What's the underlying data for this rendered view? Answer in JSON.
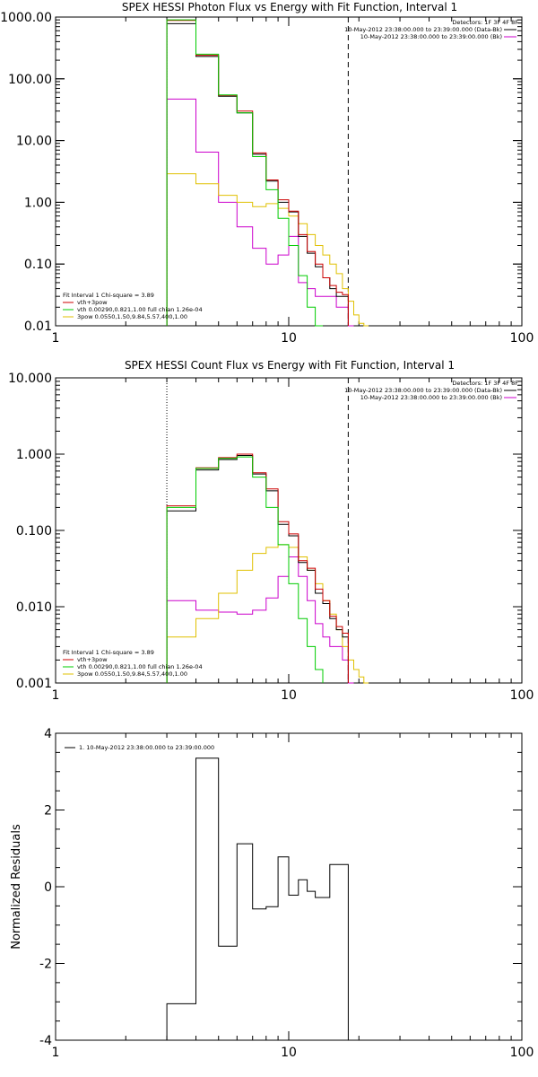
{
  "chart_data": [
    {
      "type": "line",
      "title": "SPEX HESSI Photon Flux vs Energy with Fit Function, Interval 1",
      "xscale": "log",
      "yscale": "log",
      "xlim": [
        1,
        100
      ],
      "ylim": [
        0.01,
        1000
      ],
      "xticks": [
        "1",
        "10",
        "100"
      ],
      "yticks": [
        "0.01",
        "0.10",
        "1.00",
        "10.00",
        "100.00",
        "1000.00"
      ],
      "ytick_values": [
        0.01,
        0.1,
        1,
        10,
        100,
        1000
      ],
      "detectors_text": "Detectors: 1F 3F 4F 8F",
      "top_legend": [
        {
          "label": "10-May-2012 23:38:00.000 to 23:39:00.000 (Data-Bk)",
          "color": "#000000"
        },
        {
          "label": "10-May-2012 23:38:00.000 to 23:39:00.000 (Bk)",
          "color": "#cc00cc"
        }
      ],
      "fit_legend_header": "Fit Interval 1   Chi-square = 3.89",
      "fit_legend": [
        {
          "label": "vth+3pow",
          "color": "#cc0000"
        },
        {
          "label": "vth 0.00290,0.821,1.00  full chian 1.26e-04",
          "color": "#00cc00"
        },
        {
          "label": "3pow 0.0550,1.50,9.84,5.57,400,1.00",
          "color": "#e0c000"
        }
      ],
      "dotted_x": 3.0,
      "dashed_x": 18.0,
      "bin_edges": [
        3.0,
        3.5,
        4.0,
        5.0,
        6.0,
        7.0,
        8.0,
        9.0,
        10.0,
        11.0,
        12.0,
        13.0,
        14.0,
        15.0,
        16.0,
        17.0,
        18.0,
        19.0,
        20.0,
        21.0,
        22.0
      ],
      "series": [
        {
          "key": "bk",
          "color": "#cc00cc",
          "values": [
            47,
            47,
            6.5,
            1.0,
            0.4,
            0.18,
            0.1,
            0.14,
            0.28,
            0.05,
            0.04,
            0.03,
            0.03,
            0.03,
            0.02,
            0.02,
            0.01,
            null,
            null,
            null
          ]
        },
        {
          "key": "pow",
          "color": "#e0c000",
          "values": [
            2.9,
            2.9,
            2.0,
            1.3,
            1.0,
            0.85,
            0.95,
            0.8,
            0.6,
            0.45,
            0.3,
            0.2,
            0.14,
            0.1,
            0.07,
            0.04,
            0.025,
            0.015,
            0.011,
            0.008
          ]
        },
        {
          "key": "data",
          "color": "#000000",
          "values": [
            780,
            780,
            230,
            52,
            28,
            6.0,
            2.2,
            1.0,
            0.7,
            0.28,
            0.15,
            0.09,
            0.06,
            0.04,
            0.03,
            0.03,
            null,
            null,
            null,
            null
          ]
        },
        {
          "key": "total",
          "color": "#cc0000",
          "values": [
            880,
            880,
            240,
            54,
            30,
            6.3,
            2.3,
            1.1,
            0.72,
            0.3,
            0.16,
            0.1,
            0.06,
            0.045,
            0.035,
            0.032,
            null,
            null,
            null,
            null
          ]
        },
        {
          "key": "vth",
          "color": "#00cc00",
          "values": [
            900,
            900,
            250,
            55,
            28,
            5.5,
            1.6,
            0.55,
            0.2,
            0.065,
            0.02,
            0.008,
            null,
            null,
            null,
            null,
            null,
            null,
            null,
            null
          ]
        }
      ]
    },
    {
      "type": "line",
      "title": "SPEX HESSI Count Flux vs Energy with Fit Function, Interval 1",
      "xscale": "log",
      "yscale": "log",
      "xlim": [
        1,
        100
      ],
      "ylim": [
        0.001,
        10
      ],
      "xticks": [
        "1",
        "10",
        "100"
      ],
      "yticks": [
        "0.001",
        "0.010",
        "0.100",
        "1.000",
        "10.000"
      ],
      "ytick_values": [
        0.001,
        0.01,
        0.1,
        1,
        10
      ],
      "detectors_text": "Detectors: 1F 3F 4F 8F",
      "top_legend": [
        {
          "label": "10-May-2012 23:38:00.000 to 23:39:00.000 (Data-Bk)",
          "color": "#000000"
        },
        {
          "label": "10-May-2012 23:38:00.000 to 23:39:00.000 (Bk)",
          "color": "#cc00cc"
        }
      ],
      "fit_legend_header": "Fit Interval 1   Chi-square = 3.89",
      "fit_legend": [
        {
          "label": "vth+3pow",
          "color": "#cc0000"
        },
        {
          "label": "vth 0.00290,0.821,1.00  full chian 1.26e-04",
          "color": "#00cc00"
        },
        {
          "label": "3pow 0.0550,1.50,9.84,5.57,400,1.00",
          "color": "#e0c000"
        }
      ],
      "dotted_x": 3.0,
      "dashed_x": 18.0,
      "bin_edges": [
        3.0,
        3.5,
        4.0,
        5.0,
        6.0,
        7.0,
        8.0,
        9.0,
        10.0,
        11.0,
        12.0,
        13.0,
        14.0,
        15.0,
        16.0,
        17.0,
        18.0,
        19.0,
        20.0,
        21.0,
        22.0
      ],
      "series": [
        {
          "key": "bk",
          "color": "#cc00cc",
          "values": [
            0.012,
            0.012,
            0.009,
            0.0085,
            0.008,
            0.009,
            0.013,
            0.025,
            0.045,
            0.025,
            0.012,
            0.006,
            0.004,
            0.003,
            0.003,
            0.002,
            0.001,
            null,
            null,
            null
          ]
        },
        {
          "key": "pow",
          "color": "#e0c000",
          "values": [
            0.004,
            0.004,
            0.007,
            0.015,
            0.03,
            0.05,
            0.06,
            0.065,
            0.06,
            0.045,
            0.03,
            0.02,
            0.012,
            0.008,
            0.005,
            0.003,
            0.002,
            0.0015,
            0.0012,
            0.001
          ]
        },
        {
          "key": "data",
          "color": "#000000",
          "values": [
            0.18,
            0.18,
            0.62,
            0.85,
            0.96,
            0.55,
            0.33,
            0.12,
            0.085,
            0.038,
            0.03,
            0.015,
            0.011,
            0.007,
            0.005,
            0.004,
            null,
            null,
            null,
            null
          ]
        },
        {
          "key": "total",
          "color": "#cc0000",
          "values": [
            0.21,
            0.21,
            0.66,
            0.9,
            1.0,
            0.57,
            0.35,
            0.13,
            0.09,
            0.04,
            0.032,
            0.017,
            0.012,
            0.0075,
            0.0055,
            0.0045,
            null,
            null,
            null,
            null
          ]
        },
        {
          "key": "vth",
          "color": "#00cc00",
          "values": [
            0.2,
            0.2,
            0.65,
            0.88,
            0.92,
            0.5,
            0.2,
            0.065,
            0.02,
            0.007,
            0.003,
            0.0015,
            null,
            null,
            null,
            null,
            null,
            null,
            null,
            null
          ]
        }
      ]
    },
    {
      "type": "line",
      "title": "",
      "xscale": "log",
      "yscale": "linear",
      "xlim": [
        1,
        100
      ],
      "ylim": [
        -4,
        4
      ],
      "xticks": [
        "1",
        "10",
        "100"
      ],
      "yticks": [
        "-4",
        "-2",
        "0",
        "2",
        "4"
      ],
      "ytick_values": [
        -4,
        -2,
        0,
        2,
        4
      ],
      "ylabel": "Normalized Residuals",
      "legend": [
        {
          "label": "1. 10-May-2012 23:38:00.000 to 23:39:00.000",
          "color": "#000000"
        }
      ],
      "bin_edges": [
        3.0,
        3.5,
        4.0,
        4.5,
        5.0,
        6.0,
        7.0,
        8.0,
        9.0,
        10.0,
        11.0,
        12.0,
        13.0,
        14.0,
        15.0,
        16.0,
        17.0,
        18.0
      ],
      "residuals": [
        -3.05,
        -3.05,
        3.35,
        3.35,
        -1.55,
        1.12,
        -0.58,
        -0.52,
        0.78,
        -0.22,
        0.18,
        -0.12,
        -0.28,
        -0.28,
        0.58,
        0.58,
        0.58
      ]
    }
  ]
}
